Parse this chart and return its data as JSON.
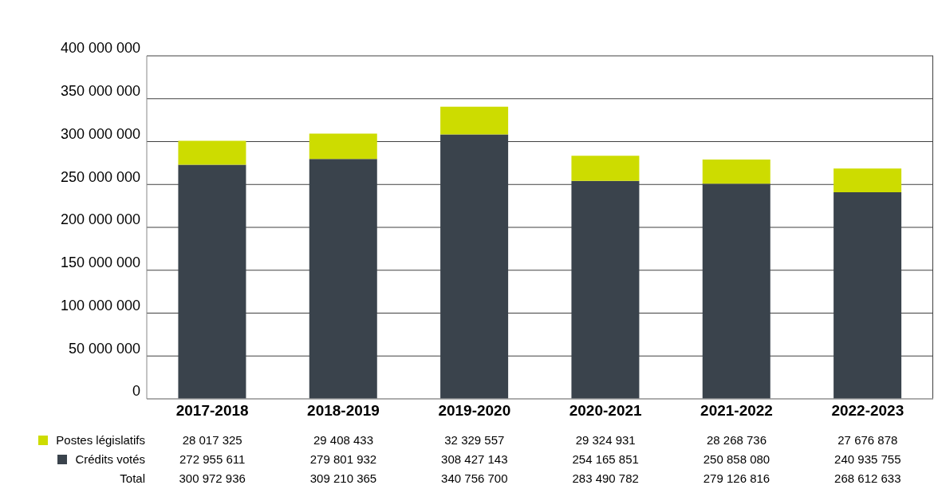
{
  "chart_data": {
    "type": "bar",
    "stacked": true,
    "categories": [
      "2017-2018",
      "2018-2019",
      "2019-2020",
      "2020-2021",
      "2021-2022",
      "2022-2023"
    ],
    "series": [
      {
        "name": "Crédits votés",
        "color": "#3a434c",
        "values": [
          272955611,
          279801932,
          308427143,
          254165851,
          250858080,
          240935755
        ]
      },
      {
        "name": "Postes législatifs",
        "color": "#cddc00",
        "values": [
          28017325,
          29408433,
          32329557,
          29324931,
          28268736,
          27676878
        ]
      }
    ],
    "ylim": [
      0,
      400000000
    ],
    "yticks": [
      0,
      {
        "value": 50000000,
        "label": "50 000 000"
      },
      {
        "value": 100000000,
        "label": "100 000 000"
      },
      {
        "value": 150000000,
        "label": "150 000 000"
      },
      {
        "value": 200000000,
        "label": "200 000 000"
      },
      {
        "value": 250000000,
        "label": "250 000 000"
      },
      {
        "value": 300000000,
        "label": "300 000 000"
      },
      {
        "value": 350000000,
        "label": "350 000 000"
      },
      {
        "value": 400000000,
        "label": "400 000 000"
      }
    ],
    "grid": "y",
    "legend": "bottom left",
    "data_labels": true,
    "annotations": [
      "Total",
      "300 972 936",
      "309 210 365",
      "340 756 700",
      "283 490 782",
      "279 126 816",
      "268 612 633"
    ]
  }
}
